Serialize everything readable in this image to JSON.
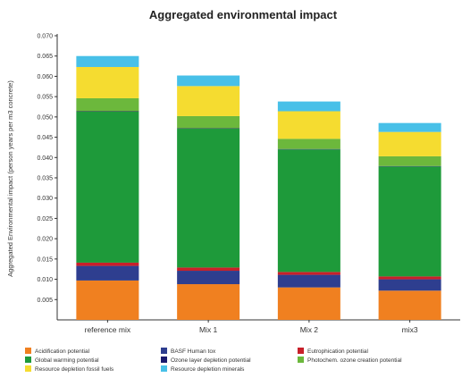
{
  "chart_data": {
    "type": "bar",
    "stacked": true,
    "title": "Aggregated environmental impact",
    "xlabel": "",
    "ylabel": "Aggregated Environmental impact (person years per m3 concrete)",
    "ylim": [
      0.0,
      0.07
    ],
    "yticks": [
      "0.005",
      "0.010",
      "0.015",
      "0.020",
      "0.025",
      "0.030",
      "0.035",
      "0.040",
      "0.045",
      "0.050",
      "0.055",
      "0.060",
      "0.065",
      "0.070"
    ],
    "ytick_values": [
      0.005,
      0.01,
      0.015,
      0.02,
      0.025,
      0.03,
      0.035,
      0.04,
      0.045,
      0.05,
      0.055,
      0.06,
      0.065,
      0.07
    ],
    "grid": false,
    "legend_position": "bottom",
    "categories": [
      "reference mix",
      "Mix 1",
      "Mix 2",
      "mix3"
    ],
    "series": [
      {
        "name": "Acidification potential",
        "color": "#f08020",
        "values": [
          0.0097,
          0.0088,
          0.008,
          0.0072
        ]
      },
      {
        "name": "BASF Human tox",
        "color": "#2e3e8f",
        "values": [
          0.0036,
          0.0033,
          0.0031,
          0.0028
        ]
      },
      {
        "name": "Eutrophication potential",
        "color": "#c8202a",
        "values": [
          0.0008,
          0.0008,
          0.0007,
          0.0007
        ]
      },
      {
        "name": "Global warming potential",
        "color": "#1e9a3a",
        "values": [
          0.0372,
          0.0342,
          0.0302,
          0.0271
        ]
      },
      {
        "name": "Ozone layer depletion potential",
        "color": "#1a1a6e",
        "values": [
          0.0001,
          0.0001,
          0.0001,
          0.0001
        ]
      },
      {
        "name": "Photochem. ozone creation potential",
        "color": "#6cb83c",
        "values": [
          0.0032,
          0.003,
          0.0025,
          0.0024
        ]
      },
      {
        "name": "Resource depletion fossil fuels",
        "color": "#f5dc30",
        "values": [
          0.0077,
          0.0074,
          0.0068,
          0.006
        ]
      },
      {
        "name": "Resource depletion minerals",
        "color": "#48c0e8",
        "values": [
          0.0027,
          0.0026,
          0.0024,
          0.0022
        ]
      }
    ]
  }
}
